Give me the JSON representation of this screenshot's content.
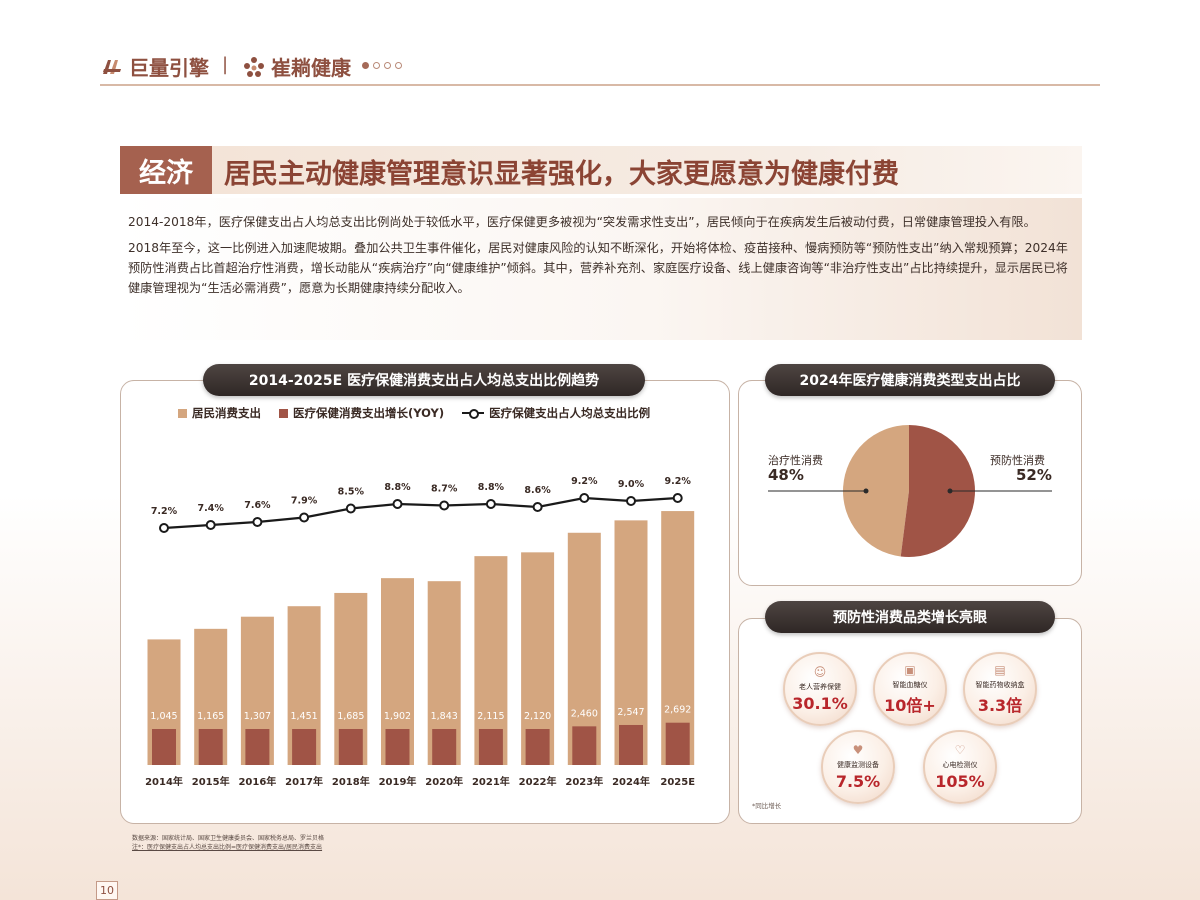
{
  "header": {
    "logo1": "巨量引擎",
    "separator": "|",
    "logo2": "崔耥健康"
  },
  "title": {
    "tag": "经济",
    "text": "居民主动健康管理意识显著强化，大家更愿意为健康付费"
  },
  "intro": {
    "p1": "2014-2018年，医疗保健支出占人均总支出比例尚处于较低水平，医疗保健更多被视为“突发需求性支出”，居民倾向于在疾病发生后被动付费，日常健康管理投入有限。",
    "p2": "2018年至今，这一比例进入加速爬坡期。叠加公共卫生事件催化，居民对健康风险的认知不断深化，开始将体检、疫苗接种、慢病预防等“预防性支出”纳入常规预算；2024年预防性消费占比首超治疗性消费，增长动能从“疾病治疗”向“健康维护”倾斜。其中，营养补充剂、家庭医疗设备、线上健康咨询等“非治疗性支出”占比持续提升，显示居民已将健康管理视为“生活必需消费”，愿意为长期健康持续分配收入。"
  },
  "main_chart_title": "2014-2025E 医疗保健消费支出占人均总支出比例趋势",
  "legend": {
    "s1": "居民消费支出",
    "s2": "医疗保健消费支出增长(YOY)",
    "s3": "医疗保健支出占人均总支出比例"
  },
  "pie_title": "2024年医疗健康消费类型支出占比",
  "grow_title": "预防性消费品类增长亮眼",
  "chart_data": [
    {
      "type": "bar",
      "categories": [
        "2014年",
        "2015年",
        "2016年",
        "2017年",
        "2018年",
        "2019年",
        "2020年",
        "2021年",
        "2022年",
        "2023年",
        "2024年",
        "2025E"
      ],
      "series": [
        {
          "name": "居民消费支出",
          "type": "bar",
          "values": [
            14491,
            15712,
            17111,
            18322,
            19853,
            21559,
            21210,
            24100,
            24538,
            26796,
            28227,
            29300
          ]
        },
        {
          "name": "医疗保健消费支出增长(YOY)",
          "type": "bar",
          "values": [
            1045,
            1165,
            1307,
            1451,
            1685,
            1902,
            1843,
            2115,
            2120,
            2460,
            2547,
            2692
          ]
        },
        {
          "name": "医疗保健支出占人均总支出比例",
          "type": "line",
          "values": [
            7.2,
            7.4,
            7.6,
            7.9,
            8.5,
            8.8,
            8.7,
            8.8,
            8.6,
            9.2,
            9.0,
            9.2
          ],
          "value_labels": [
            "7.2%",
            "7.4%",
            "7.6%",
            "7.9%",
            "8.5%",
            "8.8%",
            "8.7%",
            "8.8%",
            "8.6%",
            "9.2%",
            "9.0%",
            "9.2%"
          ]
        }
      ],
      "bar_labels": [
        "1,045",
        "1,165",
        "1,307",
        "1,451",
        "1,685",
        "1,902",
        "1,843",
        "2,115",
        "2,120",
        "2,460",
        "2,547",
        "2,692"
      ],
      "legend_position": "top",
      "grid": false
    },
    {
      "type": "pie",
      "categories": [
        "治疗性消费",
        "预防性消费"
      ],
      "values": [
        48,
        52
      ],
      "labels": [
        "48%",
        "52%"
      ],
      "colors": [
        "#d4a67f",
        "#a05446"
      ]
    },
    {
      "type": "table",
      "items": [
        {
          "name": "老人营养保健",
          "value": "30.1%",
          "icon": "elderly-icon"
        },
        {
          "name": "智能血糖仪",
          "value": "10倍+",
          "icon": "glucose-meter-icon"
        },
        {
          "name": "智能药物收纳盒",
          "value": "3.3倍",
          "icon": "pill-box-icon"
        },
        {
          "name": "健康监测设备",
          "value": "7.5%",
          "icon": "heart-monitor-icon"
        },
        {
          "name": "心电检测仪",
          "value": "105%",
          "icon": "ecg-icon"
        }
      ],
      "note": "*同比增长"
    }
  ],
  "source": {
    "line1": "数据来源：国家统计局、国家卫生健康委员会、国家税务总局、罗兰贝格",
    "line2": "注*：医疗保健支出占人均总支出比例=医疗保健消费支出/居民消费支出"
  },
  "page_number": "10",
  "colors": {
    "bar_light": "#d4a67f",
    "bar_dark": "#a05446",
    "accent": "#a5614f",
    "value_red": "#b8262b"
  }
}
